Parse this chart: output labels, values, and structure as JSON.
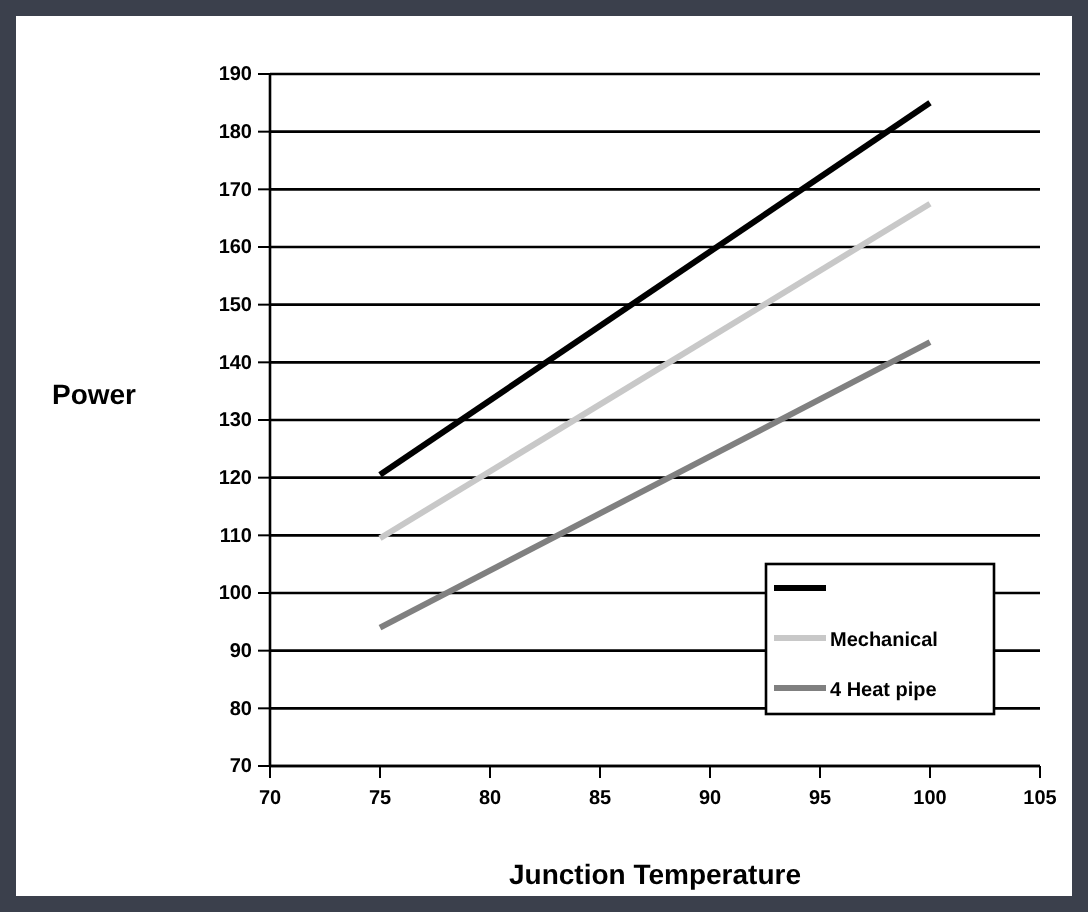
{
  "chart_data": {
    "type": "line",
    "xlabel": "Junction Temperature",
    "ylabel": "Power",
    "xlim": [
      70,
      105
    ],
    "xticks": [
      70,
      75,
      80,
      85,
      90,
      95,
      100,
      105
    ],
    "ylim": [
      70,
      190
    ],
    "yticks": [
      70,
      80,
      90,
      100,
      110,
      120,
      130,
      140,
      150,
      160,
      170,
      180,
      190
    ],
    "grid": "y",
    "legend": "bottom right",
    "marker": "none",
    "line_style": "solid",
    "x": [
      75,
      100
    ],
    "series": [
      {
        "color": "#000000",
        "values": [
          120.5,
          185
        ]
      },
      {
        "name": "Mechanical",
        "color": "#c8c8c8",
        "values": [
          109.5,
          167.5
        ]
      },
      {
        "name": "4 Heat pipe",
        "color": "#808080",
        "values": [
          94,
          143.5
        ]
      }
    ]
  }
}
